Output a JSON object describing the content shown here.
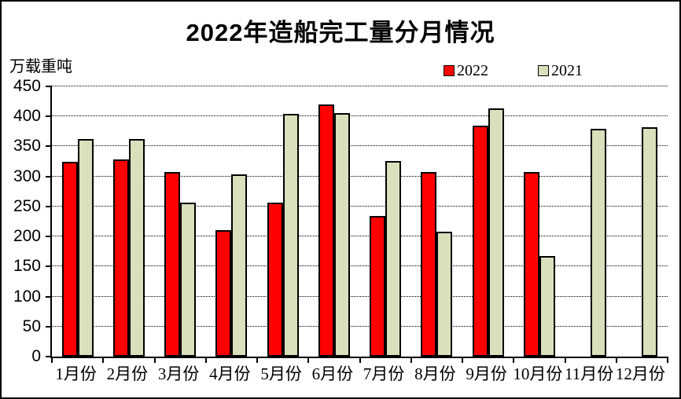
{
  "chart": {
    "title": "2022年造船完工量分月情况",
    "unit_label": "万载重吨"
  },
  "chart_data": {
    "type": "bar",
    "title": "2022年造船完工量分月情况",
    "ylabel": "万载重吨",
    "xlabel": "",
    "categories": [
      "1月份",
      "2月份",
      "3月份",
      "4月份",
      "5月份",
      "6月份",
      "7月份",
      "8月份",
      "9月份",
      "10月份",
      "11月份",
      "12月份"
    ],
    "series": [
      {
        "name": "2022",
        "color": "#ff0000",
        "values": [
          325,
          328,
          307,
          211,
          256,
          420,
          234,
          308,
          385,
          307,
          null,
          null
        ]
      },
      {
        "name": "2021",
        "color": "#d8e0bc",
        "values": [
          362,
          362,
          256,
          303,
          404,
          405,
          326,
          208,
          413,
          167,
          380,
          382
        ]
      }
    ],
    "ylim": [
      0,
      450
    ],
    "yticks": [
      0,
      50,
      100,
      150,
      200,
      250,
      300,
      350,
      400,
      450
    ],
    "grid": "horizontal-dotted",
    "legend_position": "top-right"
  }
}
